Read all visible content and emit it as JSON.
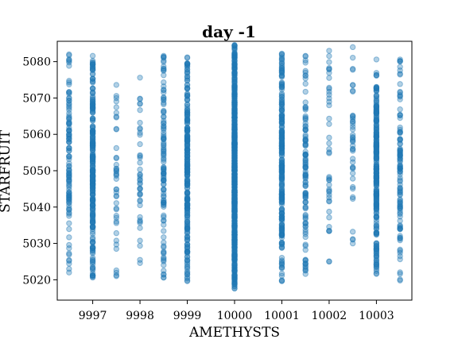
{
  "chart_data": {
    "type": "scatter",
    "title": "day -1",
    "xlabel": "AMETHYSTS",
    "ylabel": "STARFRUIT",
    "xlim": [
      9996.25,
      10003.75
    ],
    "ylim": [
      5014.4,
      5085.6
    ],
    "x_ticks": [
      9997,
      9998,
      9999,
      10000,
      10001,
      10002,
      10003
    ],
    "x_tick_labels": [
      "9997",
      "9998",
      "9999",
      "10000",
      "10001",
      "10002",
      "10003"
    ],
    "y_ticks": [
      5020,
      5030,
      5040,
      5050,
      5060,
      5070,
      5080
    ],
    "y_tick_labels": [
      "5020",
      "5030",
      "5040",
      "5050",
      "5060",
      "5070",
      "5080"
    ],
    "grid": false,
    "color": "#1f77b4",
    "columns": [
      {
        "x": 9996.5,
        "y_min": 5022,
        "y_max": 5082,
        "density": "medium"
      },
      {
        "x": 9997,
        "y_min": 5020.6,
        "y_max": 5081.6,
        "density": "high"
      },
      {
        "x": 9997.5,
        "y_min": 5021,
        "y_max": 5073.6,
        "density": "low"
      },
      {
        "x": 9998,
        "y_min": 5024.6,
        "y_max": 5075.6,
        "density": "low"
      },
      {
        "x": 9998.5,
        "y_min": 5020.6,
        "y_max": 5081.6,
        "density": "medium"
      },
      {
        "x": 9999,
        "y_min": 5019.6,
        "y_max": 5081.2,
        "density": "high"
      },
      {
        "x": 10000,
        "y_min": 5017.6,
        "y_max": 5084.6,
        "density": "very-high"
      },
      {
        "x": 10001,
        "y_min": 5019.6,
        "y_max": 5082.2,
        "density": "high"
      },
      {
        "x": 10001.5,
        "y_min": 5021.6,
        "y_max": 5081.6,
        "density": "medium"
      },
      {
        "x": 10002,
        "y_min": 5025,
        "y_max": 5083,
        "density": "low"
      },
      {
        "x": 10002.5,
        "y_min": 5030,
        "y_max": 5084,
        "density": "low"
      },
      {
        "x": 10003,
        "y_min": 5021.6,
        "y_max": 5080.6,
        "density": "high"
      },
      {
        "x": 10003.5,
        "y_min": 5019.8,
        "y_max": 5080.6,
        "density": "medium"
      }
    ]
  }
}
